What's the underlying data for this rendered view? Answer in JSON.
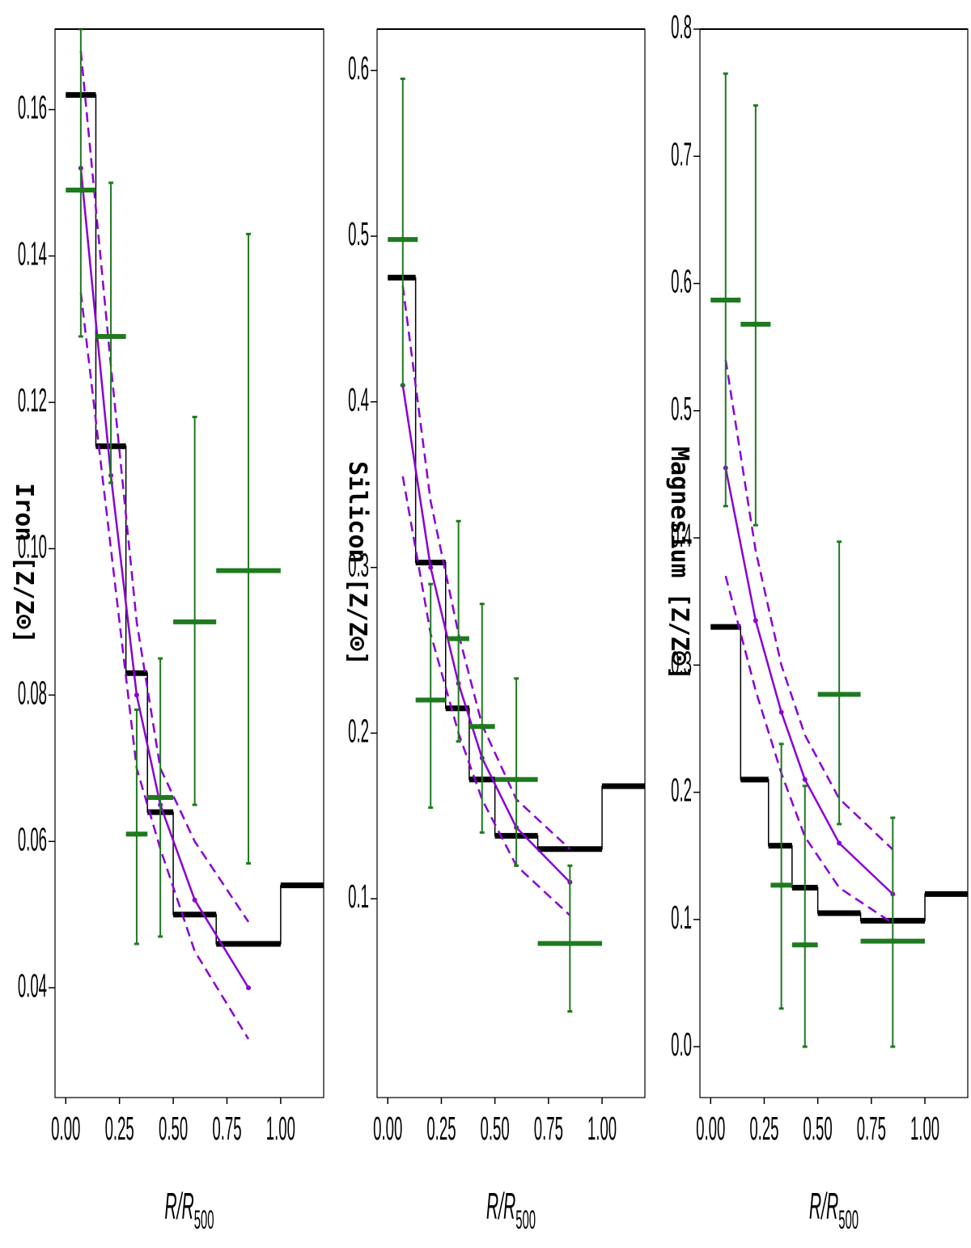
{
  "colors": {
    "obs": "#1f7a1f",
    "model": "#8a00d4",
    "profile": "#000000"
  },
  "chart_data": [
    {
      "type": "line",
      "element": "Iron",
      "ylabel": "Iron [Z/Z⊙]",
      "xlabel_main": "R/R",
      "xlabel_sub": "500",
      "xlim": [
        -0.05,
        1.2
      ],
      "ylim": [
        0.025,
        0.171
      ],
      "xticks": [
        0.0,
        0.25,
        0.5,
        0.75,
        1.0
      ],
      "xtick_labels": [
        "0.00",
        "0.25",
        "0.50",
        "0.75",
        "1.00"
      ],
      "yticks": [
        0.04,
        0.06,
        0.08,
        0.1,
        0.12,
        0.14,
        0.16
      ],
      "ytick_labels": [
        "0.04",
        "0.06",
        "0.08",
        "0.10",
        "0.12",
        "0.14",
        "0.16"
      ],
      "step_profile": {
        "edges": [
          0.0,
          0.14,
          0.28,
          0.38,
          0.5,
          0.7,
          1.0,
          1.2
        ],
        "values": [
          0.162,
          0.114,
          0.083,
          0.064,
          0.05,
          0.046,
          0.054
        ]
      },
      "model": {
        "x": [
          0.07,
          0.21,
          0.33,
          0.44,
          0.6,
          0.85
        ],
        "y": [
          0.152,
          0.11,
          0.08,
          0.065,
          0.052,
          0.04
        ],
        "upper": [
          0.168,
          0.125,
          0.09,
          0.07,
          0.06,
          0.049
        ],
        "lower": [
          0.135,
          0.1,
          0.07,
          0.059,
          0.045,
          0.033
        ]
      },
      "observations": [
        {
          "x": 0.07,
          "xerr": 0.07,
          "y": 0.149,
          "ylo": 0.129,
          "yhi": 0.171
        },
        {
          "x": 0.21,
          "xerr": 0.07,
          "y": 0.129,
          "ylo": 0.109,
          "yhi": 0.15
        },
        {
          "x": 0.33,
          "xerr": 0.05,
          "y": 0.061,
          "ylo": 0.046,
          "yhi": 0.078
        },
        {
          "x": 0.44,
          "xerr": 0.06,
          "y": 0.066,
          "ylo": 0.047,
          "yhi": 0.085
        },
        {
          "x": 0.6,
          "xerr": 0.1,
          "y": 0.09,
          "ylo": 0.065,
          "yhi": 0.118
        },
        {
          "x": 0.85,
          "xerr": 0.15,
          "y": 0.097,
          "ylo": 0.057,
          "yhi": 0.143
        }
      ]
    },
    {
      "type": "line",
      "element": "Silicon",
      "ylabel": "Silicon [Z/Z⊙]",
      "xlabel_main": "R/R",
      "xlabel_sub": "500",
      "xlim": [
        -0.05,
        1.2
      ],
      "ylim": [
        -0.02,
        0.625
      ],
      "xticks": [
        0.0,
        0.25,
        0.5,
        0.75,
        1.0
      ],
      "xtick_labels": [
        "0.00",
        "0.25",
        "0.50",
        "0.75",
        "1.00"
      ],
      "yticks": [
        0.1,
        0.2,
        0.3,
        0.4,
        0.5,
        0.6
      ],
      "ytick_labels": [
        "0.1",
        "0.2",
        "0.3",
        "0.4",
        "0.5",
        "0.6"
      ],
      "step_profile": {
        "edges": [
          0.0,
          0.13,
          0.27,
          0.38,
          0.5,
          0.7,
          1.0,
          1.2
        ],
        "values": [
          0.475,
          0.303,
          0.215,
          0.172,
          0.138,
          0.13,
          0.168
        ]
      },
      "model": {
        "x": [
          0.07,
          0.2,
          0.33,
          0.44,
          0.6,
          0.85
        ],
        "y": [
          0.41,
          0.3,
          0.23,
          0.185,
          0.143,
          0.11
        ],
        "upper": [
          0.47,
          0.34,
          0.26,
          0.205,
          0.16,
          0.13
        ],
        "lower": [
          0.355,
          0.26,
          0.2,
          0.16,
          0.12,
          0.09
        ]
      },
      "observations": [
        {
          "x": 0.07,
          "xerr": 0.07,
          "y": 0.498,
          "ylo": 0.41,
          "yhi": 0.595
        },
        {
          "x": 0.2,
          "xerr": 0.07,
          "y": 0.22,
          "ylo": 0.155,
          "yhi": 0.29
        },
        {
          "x": 0.33,
          "xerr": 0.05,
          "y": 0.257,
          "ylo": 0.195,
          "yhi": 0.328
        },
        {
          "x": 0.44,
          "xerr": 0.06,
          "y": 0.204,
          "ylo": 0.14,
          "yhi": 0.278
        },
        {
          "x": 0.6,
          "xerr": 0.1,
          "y": 0.172,
          "ylo": 0.12,
          "yhi": 0.233
        },
        {
          "x": 0.85,
          "xerr": 0.15,
          "y": 0.073,
          "ylo": 0.032,
          "yhi": 0.12
        }
      ]
    },
    {
      "type": "line",
      "element": "Magnesium",
      "ylabel": "Magnesium [Z/Z⊙]",
      "xlabel_main": "R/R",
      "xlabel_sub": "500",
      "xlim": [
        -0.05,
        1.2
      ],
      "ylim": [
        -0.04,
        0.8
      ],
      "xticks": [
        0.0,
        0.25,
        0.5,
        0.75,
        1.0
      ],
      "xtick_labels": [
        "0.00",
        "0.25",
        "0.50",
        "0.75",
        "1.00"
      ],
      "yticks": [
        0.0,
        0.1,
        0.2,
        0.3,
        0.4,
        0.5,
        0.6,
        0.7,
        0.8
      ],
      "ytick_labels": [
        "0.0",
        "0.1",
        "0.2",
        "0.3",
        "0.4",
        "0.5",
        "0.6",
        "0.7",
        "0.8"
      ],
      "step_profile": {
        "edges": [
          0.0,
          0.14,
          0.27,
          0.38,
          0.5,
          0.7,
          1.0,
          1.2
        ],
        "values": [
          0.33,
          0.21,
          0.158,
          0.125,
          0.105,
          0.099,
          0.12
        ]
      },
      "model": {
        "x": [
          0.07,
          0.21,
          0.33,
          0.44,
          0.6,
          0.85
        ],
        "y": [
          0.455,
          0.335,
          0.263,
          0.21,
          0.16,
          0.12
        ],
        "upper": [
          0.54,
          0.39,
          0.3,
          0.245,
          0.195,
          0.155
        ],
        "lower": [
          0.37,
          0.28,
          0.215,
          0.165,
          0.125,
          0.097
        ]
      },
      "observations": [
        {
          "x": 0.07,
          "xerr": 0.07,
          "y": 0.587,
          "ylo": 0.425,
          "yhi": 0.765
        },
        {
          "x": 0.21,
          "xerr": 0.07,
          "y": 0.568,
          "ylo": 0.41,
          "yhi": 0.74
        },
        {
          "x": 0.33,
          "xerr": 0.05,
          "y": 0.127,
          "ylo": 0.03,
          "yhi": 0.238
        },
        {
          "x": 0.44,
          "xerr": 0.06,
          "y": 0.08,
          "ylo": 0.0,
          "yhi": 0.205
        },
        {
          "x": 0.6,
          "xerr": 0.1,
          "y": 0.277,
          "ylo": 0.175,
          "yhi": 0.397
        },
        {
          "x": 0.85,
          "xerr": 0.15,
          "y": 0.083,
          "ylo": 0.0,
          "yhi": 0.18
        }
      ]
    }
  ]
}
